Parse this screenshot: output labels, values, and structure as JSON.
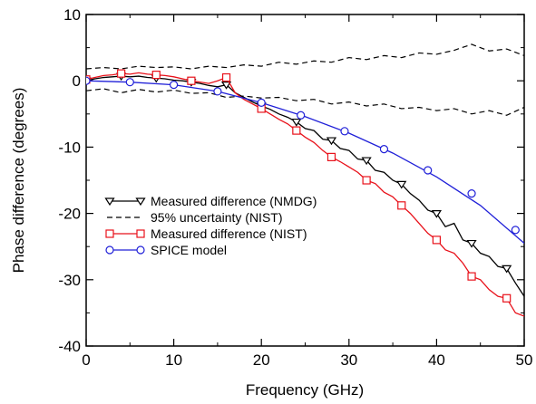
{
  "chart_data": {
    "type": "line",
    "xlabel": "Frequency (GHz)",
    "ylabel": "Phase difference (degrees)",
    "xlim": [
      0,
      50
    ],
    "ylim": [
      -40,
      10
    ],
    "xticks": [
      0,
      10,
      20,
      30,
      40,
      50
    ],
    "yticks": [
      10,
      0,
      -10,
      -20,
      -30,
      -40
    ],
    "grid": false,
    "legend_position": "lower-left",
    "series": [
      {
        "name": "Measured difference (NMDG)",
        "color": "#000000",
        "line_style": "solid",
        "marker": "triangle-down",
        "x": [
          0,
          1,
          2,
          3,
          4,
          5,
          6,
          7,
          8,
          9,
          10,
          11,
          12,
          13,
          14,
          15,
          16,
          17,
          18,
          19,
          20,
          21,
          22,
          23,
          24,
          25,
          26,
          27,
          28,
          29,
          30,
          31,
          32,
          33,
          34,
          35,
          36,
          37,
          38,
          39,
          40,
          41,
          42,
          43,
          44,
          45,
          46,
          47,
          48,
          49,
          50
        ],
        "values": [
          0,
          0.3,
          0.5,
          0.6,
          0.7,
          0.6,
          0.7,
          0.5,
          0.4,
          0.3,
          0.1,
          0,
          -0.2,
          -0.4,
          -0.7,
          -0.9,
          -0.6,
          -1.8,
          -2.5,
          -3.2,
          -3.8,
          -4.3,
          -5,
          -5.5,
          -6.2,
          -7.2,
          -7.5,
          -8.8,
          -9,
          -10.2,
          -10.5,
          -11.8,
          -12,
          -13.5,
          -13.8,
          -15,
          -15.6,
          -17,
          -18,
          -19.5,
          -20,
          -22,
          -21.5,
          -24,
          -24.5,
          -26,
          -26.5,
          -28,
          -28.3,
          -30.5,
          -32.5
        ],
        "marker_x": [
          0,
          4,
          8,
          12,
          16,
          20,
          24,
          28,
          32,
          36,
          40,
          44,
          48
        ],
        "marker_values": [
          0,
          0.7,
          0.4,
          -0.2,
          -0.6,
          -3.8,
          -6.2,
          -9,
          -12,
          -15.6,
          -20,
          -24.5,
          -28.3
        ]
      },
      {
        "name": "95% uncertainty (NIST)",
        "color": "#000000",
        "line_style": "dashed",
        "marker": "none",
        "x": [
          0,
          2,
          4,
          6,
          8,
          10,
          12,
          14,
          16,
          18,
          20,
          22,
          24,
          26,
          28,
          30,
          32,
          34,
          36,
          38,
          40,
          42,
          44,
          46,
          48,
          50
        ],
        "values": [
          1.8,
          2,
          1.8,
          2.2,
          2,
          2.1,
          1.8,
          2.2,
          2,
          2.4,
          2.2,
          2.8,
          2.5,
          3,
          2.8,
          3.5,
          3.2,
          3.8,
          3.5,
          4.2,
          4,
          4.6,
          5.5,
          4.5,
          4.8,
          3.8
        ],
        "lower_values": [
          -1.5,
          -1.2,
          -1.8,
          -1.3,
          -1.7,
          -1.4,
          -1.9,
          -1.8,
          -2.5,
          -2.3,
          -2.6,
          -2.5,
          -3,
          -2.8,
          -3.5,
          -3.2,
          -3.8,
          -3.5,
          -4.2,
          -4,
          -4.5,
          -4.2,
          -5,
          -4.5,
          -5.2,
          -4
        ]
      },
      {
        "name": "Measured difference (NIST)",
        "color": "#e8111a",
        "line_style": "solid",
        "marker": "square",
        "x": [
          0,
          1,
          2,
          3,
          4,
          5,
          6,
          7,
          8,
          9,
          10,
          11,
          12,
          13,
          14,
          15,
          16,
          17,
          18,
          19,
          20,
          21,
          22,
          23,
          24,
          25,
          26,
          27,
          28,
          29,
          30,
          31,
          32,
          33,
          34,
          35,
          36,
          37,
          38,
          39,
          40,
          41,
          42,
          43,
          44,
          45,
          46,
          47,
          48,
          49,
          50
        ],
        "values": [
          0.2,
          0.5,
          0.8,
          0.9,
          1.1,
          1,
          1.2,
          1,
          0.9,
          0.8,
          0.6,
          0.3,
          0,
          -0.2,
          -0.4,
          0,
          0.5,
          -1.8,
          -2.8,
          -3.5,
          -4.2,
          -5,
          -5.8,
          -6.5,
          -7.5,
          -8.5,
          -9.3,
          -10.5,
          -11.5,
          -12.2,
          -13,
          -13.8,
          -15,
          -15.5,
          -16.8,
          -17.5,
          -18.8,
          -20,
          -21.5,
          -23,
          -24,
          -25.5,
          -26,
          -27.5,
          -29.5,
          -30,
          -31.5,
          -32.5,
          -32.8,
          -35,
          -35.5
        ],
        "marker_x": [
          0,
          4,
          8,
          12,
          16,
          20,
          24,
          28,
          32,
          36,
          40,
          44,
          48
        ],
        "marker_values": [
          0.2,
          1.1,
          0.9,
          0,
          0.5,
          -4.2,
          -7.5,
          -11.5,
          -15,
          -18.8,
          -24,
          -29.5,
          -32.8
        ]
      },
      {
        "name": "SPICE model",
        "color": "#2020d8",
        "line_style": "solid",
        "marker": "circle",
        "x": [
          0,
          5,
          10,
          15,
          20,
          25,
          30,
          35,
          40,
          45,
          50
        ],
        "values": [
          0,
          -0.2,
          -0.6,
          -1.6,
          -3.3,
          -5.4,
          -7.9,
          -10.9,
          -14.5,
          -18.8,
          -24.5
        ],
        "marker_x": [
          0,
          5,
          10,
          15,
          20,
          24.5,
          29.5,
          34,
          39,
          44,
          49
        ],
        "marker_values": [
          0,
          -0.2,
          -0.6,
          -1.6,
          -3.3,
          -5.2,
          -7.6,
          -10.3,
          -13.5,
          -17,
          -22.5
        ]
      }
    ]
  }
}
